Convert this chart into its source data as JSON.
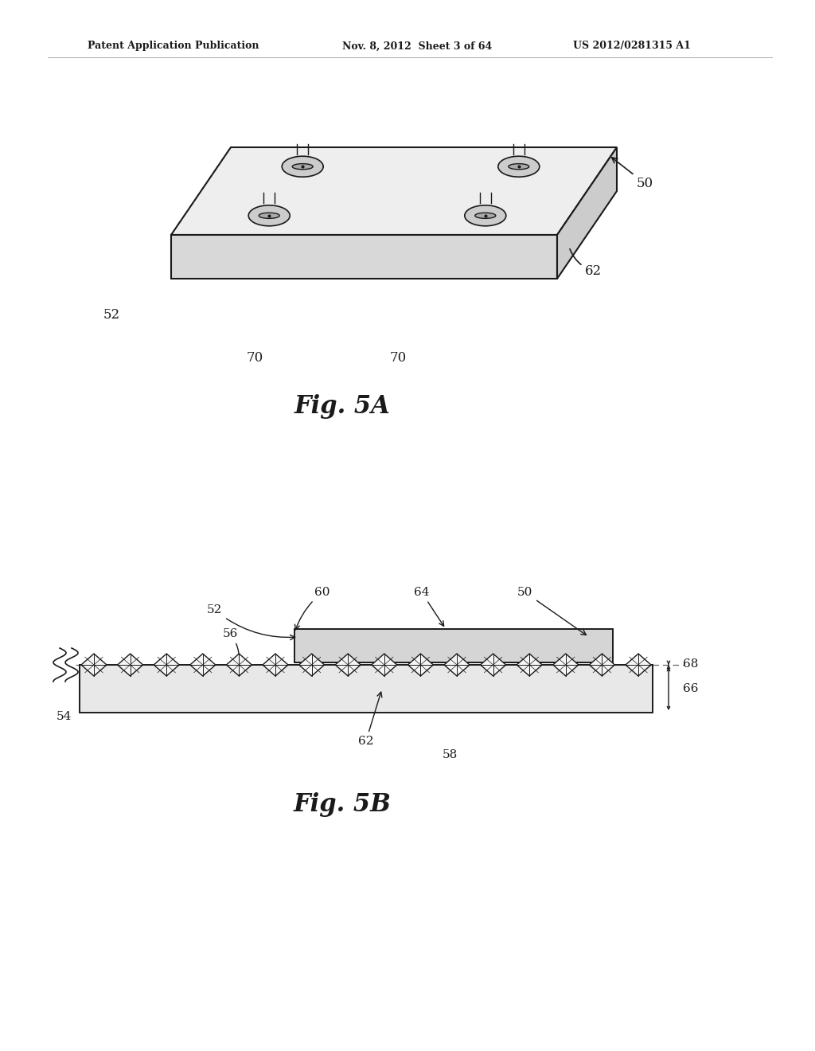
{
  "bg_color": "#ffffff",
  "line_color": "#1a1a1a",
  "header_left": "Patent Application Publication",
  "header_mid": "Nov. 8, 2012  Sheet 3 of 64",
  "header_right": "US 2012/0281315 A1",
  "fig5a_label": "Fig. 5A",
  "fig5b_label": "Fig. 5B"
}
